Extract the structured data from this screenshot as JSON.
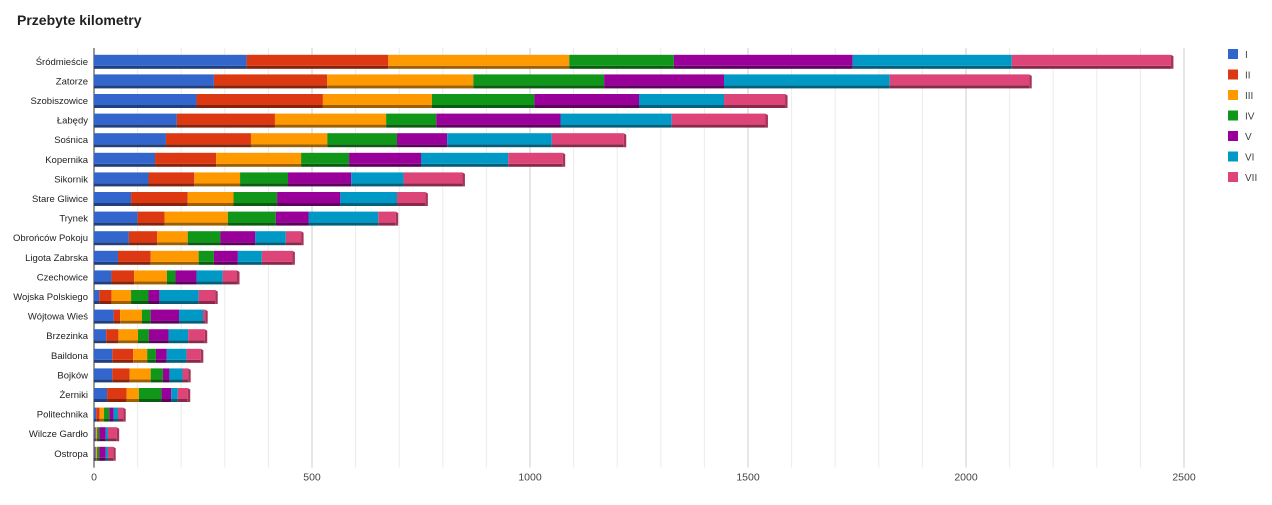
{
  "chart_data": {
    "type": "bar",
    "orientation": "horizontal",
    "stacked": true,
    "style": "3d",
    "title": "Przebyte kilometry",
    "xlim": [
      0,
      2500
    ],
    "x_ticks": [
      0,
      500,
      1000,
      1500,
      2000,
      2500
    ],
    "grid": true,
    "legend_position": "right",
    "categories": [
      "Śródmieście",
      "Zatorze",
      "Szobiszowice",
      "Łabędy",
      "Sośnica",
      "Kopernika",
      "Sikornik",
      "Stare Gliwice",
      "Trynek",
      "Obrońców Pokoju",
      "Ligota Zabrska",
      "Czechowice",
      "Wojska Polskiego",
      "Wójtowa Wieś",
      "Brzezinka",
      "Baildona",
      "Bojków",
      "Żerniki",
      "Politechnika",
      "Wilcze Gardło",
      "Ostropa"
    ],
    "series": [
      {
        "name": "I",
        "color": "#3366cc",
        "values": [
          350,
          275,
          235,
          190,
          165,
          140,
          125,
          85,
          100,
          80,
          55,
          40,
          12,
          45,
          28,
          42,
          42,
          30,
          5,
          3,
          3
        ]
      },
      {
        "name": "II",
        "color": "#dc3912",
        "values": [
          325,
          260,
          290,
          225,
          195,
          140,
          105,
          130,
          62,
          65,
          75,
          52,
          28,
          15,
          28,
          48,
          40,
          45,
          8,
          2,
          2
        ]
      },
      {
        "name": "III",
        "color": "#ff9900",
        "values": [
          415,
          335,
          250,
          255,
          175,
          195,
          105,
          105,
          145,
          70,
          110,
          75,
          45,
          50,
          45,
          32,
          48,
          28,
          10,
          2,
          2
        ]
      },
      {
        "name": "IV",
        "color": "#109618",
        "values": [
          240,
          300,
          235,
          115,
          160,
          110,
          110,
          100,
          110,
          75,
          35,
          20,
          40,
          20,
          25,
          20,
          28,
          52,
          12,
          5,
          5
        ]
      },
      {
        "name": "V",
        "color": "#990099",
        "values": [
          410,
          275,
          240,
          285,
          115,
          165,
          145,
          145,
          75,
          80,
          55,
          48,
          25,
          65,
          45,
          25,
          15,
          22,
          10,
          15,
          15
        ]
      },
      {
        "name": "VI",
        "color": "#0099c6",
        "values": [
          365,
          380,
          195,
          255,
          240,
          200,
          120,
          130,
          160,
          70,
          55,
          60,
          90,
          55,
          45,
          45,
          30,
          15,
          10,
          5,
          5
        ]
      },
      {
        "name": "VII",
        "color": "#dd4477",
        "values": [
          365,
          320,
          140,
          215,
          165,
          125,
          135,
          65,
          40,
          35,
          70,
          33,
          38,
          5,
          38,
          33,
          13,
          23,
          12,
          20,
          12
        ]
      }
    ]
  }
}
